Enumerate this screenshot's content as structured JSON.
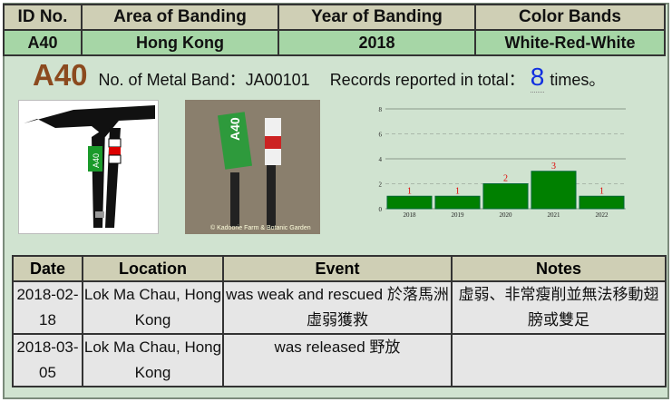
{
  "header": {
    "columns": [
      "ID No.",
      "Area of Banding",
      "Year of Banding",
      "Color Bands"
    ],
    "values": [
      "A40",
      "Hong Kong",
      "2018",
      "White-Red-White"
    ]
  },
  "info": {
    "id": "A40",
    "metal_band": "No. of Metal Band：JA00101",
    "records_label": "Records reported in total：",
    "records_count": "8",
    "records_suffix": "times。"
  },
  "images": {
    "photo_credit": "© Kadoorie Farm & Botanic Garden",
    "ring_label": "A40"
  },
  "chart_data": {
    "type": "bar",
    "categories": [
      "2018",
      "2019",
      "2020",
      "2021",
      "2022"
    ],
    "values": [
      1,
      1,
      2,
      3,
      1
    ],
    "ylim": [
      0,
      8
    ],
    "yticks": [
      0,
      2,
      4,
      6,
      8
    ],
    "grid": true,
    "bar_color": "#008000",
    "label_color": "#e00000"
  },
  "records": {
    "columns": [
      "Date",
      "Location",
      "Event",
      "Notes"
    ],
    "rows": [
      {
        "date": "2018-02-18",
        "location": "Lok Ma Chau, HongKong",
        "event": "was weak and rescued 於落馬洲虛弱獲救",
        "notes": "虛弱、非常瘦削並無法移動翅膀或雙足"
      },
      {
        "date": "2018-03-05",
        "location": "Lok Ma Chau, HongKong",
        "event": "was released 野放",
        "notes": ""
      }
    ]
  }
}
